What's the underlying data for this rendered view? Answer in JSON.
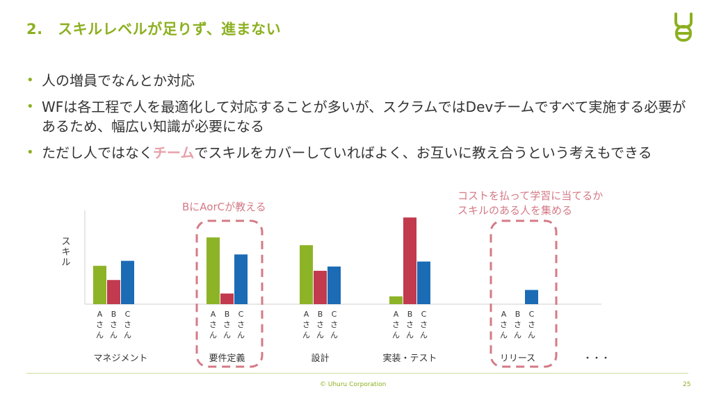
{
  "slide": {
    "title": "2.　スキルレベルが足りず、進まない",
    "bullets": [
      {
        "text": "人の増員でなんとか対応"
      },
      {
        "text": "WFは各工程で人を最適化して対応することが多いが、スクラムではDevチームですべて実施する必要があるため、幅広い知識が必要になる"
      },
      {
        "before": "ただし人ではなく",
        "highlight": "チーム",
        "after": "でスキルをカバーしていればよく、お互いに教え合うという考えもできる"
      }
    ],
    "callout_left": "BにAorCが教える",
    "callout_right_line1": "コストを払って学習に当てるか",
    "callout_right_line2": "スキルのある人を集める",
    "footer_copyright": "© Uhuru Corporation",
    "page_number": "25"
  },
  "colors": {
    "title": "#8cb020",
    "accent": "#e8a0a8",
    "callout": "#d47a86",
    "series_a": "#8db427",
    "series_b": "#c23a4e",
    "series_c": "#1b6bb5"
  },
  "icons": {
    "logo": "uhuru-logo-icon"
  },
  "chart_data": {
    "type": "bar",
    "ylabel": "スキル",
    "categories": [
      "マネジメント",
      "要件定義",
      "設計",
      "実装・テスト",
      "リリース"
    ],
    "trailing_label": "・・・",
    "series": [
      {
        "name": "Aさん",
        "values": [
          54,
          94,
          83,
          11,
          0
        ]
      },
      {
        "name": "Bさん",
        "values": [
          34,
          15,
          47,
          122,
          0
        ]
      },
      {
        "name": "Cさん",
        "values": [
          61,
          70,
          53,
          60,
          20
        ]
      }
    ],
    "bar_labels": [
      "A\nさ\nん",
      "B\nさ\nん",
      "C\nさ\nん"
    ],
    "highlighted_categories": [
      "要件定義",
      "リリース"
    ],
    "ylim": [
      0,
      130
    ],
    "grid": false
  }
}
